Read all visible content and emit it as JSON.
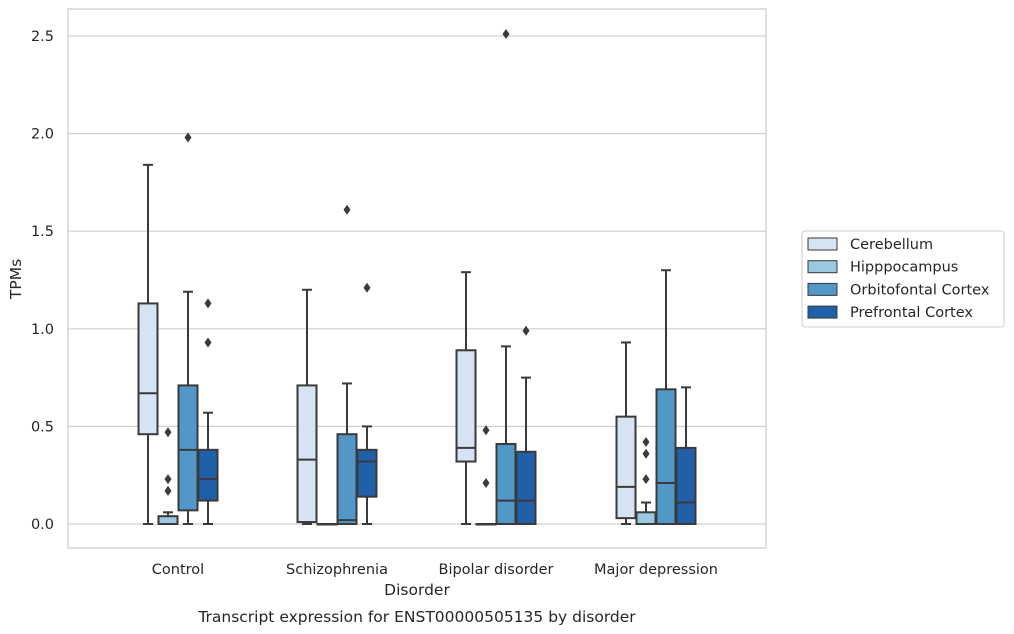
{
  "chart_data": {
    "type": "box",
    "caption": "Transcript expression for ENST00000505135 by disorder",
    "xlabel": "Disorder",
    "ylabel": "TPMs",
    "ylim": [
      -0.12,
      2.6
    ],
    "yticks": [
      0.0,
      0.5,
      1.0,
      1.5,
      2.0,
      2.5
    ],
    "ytick_labels": [
      "0.0",
      "0.5",
      "1.0",
      "1.5",
      "2.0",
      "2.5"
    ],
    "grid": "horizontal",
    "legend_position": "right",
    "categories": [
      "Control",
      "Schizophrenia",
      "Bipolar disorder",
      "Major depression"
    ],
    "series": [
      {
        "name": "Cerebellum",
        "color": "#d5e3f2",
        "boxes": [
          {
            "whisker_low": 0.0,
            "q1": 0.46,
            "median": 0.67,
            "q3": 1.13,
            "whisker_high": 1.84,
            "outliers": []
          },
          {
            "whisker_low": 0.0,
            "q1": 0.01,
            "median": 0.33,
            "q3": 0.71,
            "whisker_high": 1.2,
            "outliers": []
          },
          {
            "whisker_low": 0.0,
            "q1": 0.32,
            "median": 0.39,
            "q3": 0.89,
            "whisker_high": 1.29,
            "outliers": []
          },
          {
            "whisker_low": 0.0,
            "q1": 0.03,
            "median": 0.19,
            "q3": 0.55,
            "whisker_high": 0.93,
            "outliers": []
          }
        ]
      },
      {
        "name": "Hipppocampus",
        "color": "#9ac8e0",
        "boxes": [
          {
            "whisker_low": 0.0,
            "q1": 0.0,
            "median": 0.0,
            "q3": 0.04,
            "whisker_high": 0.06,
            "outliers": [
              0.47,
              0.23,
              0.17
            ]
          },
          {
            "whisker_low": 0.0,
            "q1": 0.0,
            "median": 0.0,
            "q3": 0.0,
            "whisker_high": 0.0,
            "outliers": []
          },
          {
            "whisker_low": 0.0,
            "q1": 0.0,
            "median": 0.0,
            "q3": 0.0,
            "whisker_high": 0.0,
            "outliers": [
              0.48,
              0.21
            ]
          },
          {
            "whisker_low": 0.0,
            "q1": 0.0,
            "median": 0.0,
            "q3": 0.06,
            "whisker_high": 0.11,
            "outliers": [
              0.42,
              0.36,
              0.23
            ]
          }
        ]
      },
      {
        "name": "Orbitofontal Cortex",
        "color": "#5197c8",
        "boxes": [
          {
            "whisker_low": 0.0,
            "q1": 0.07,
            "median": 0.38,
            "q3": 0.71,
            "whisker_high": 1.19,
            "outliers": [
              1.98
            ]
          },
          {
            "whisker_low": 0.0,
            "q1": 0.0,
            "median": 0.02,
            "q3": 0.46,
            "whisker_high": 0.72,
            "outliers": [
              1.61
            ]
          },
          {
            "whisker_low": 0.0,
            "q1": 0.0,
            "median": 0.12,
            "q3": 0.41,
            "whisker_high": 0.91,
            "outliers": [
              2.51
            ]
          },
          {
            "whisker_low": 0.0,
            "q1": 0.0,
            "median": 0.21,
            "q3": 0.69,
            "whisker_high": 1.3,
            "outliers": []
          }
        ]
      },
      {
        "name": "Prefrontal Cortex",
        "color": "#2060a8",
        "boxes": [
          {
            "whisker_low": 0.0,
            "q1": 0.12,
            "median": 0.23,
            "q3": 0.38,
            "whisker_high": 0.57,
            "outliers": [
              1.13,
              0.93
            ]
          },
          {
            "whisker_low": 0.0,
            "q1": 0.14,
            "median": 0.32,
            "q3": 0.38,
            "whisker_high": 0.5,
            "outliers": [
              1.21
            ]
          },
          {
            "whisker_low": 0.0,
            "q1": 0.0,
            "median": 0.12,
            "q3": 0.37,
            "whisker_high": 0.75,
            "outliers": [
              0.99
            ]
          },
          {
            "whisker_low": 0.0,
            "q1": 0.0,
            "median": 0.11,
            "q3": 0.39,
            "whisker_high": 0.7,
            "outliers": []
          }
        ]
      }
    ]
  }
}
